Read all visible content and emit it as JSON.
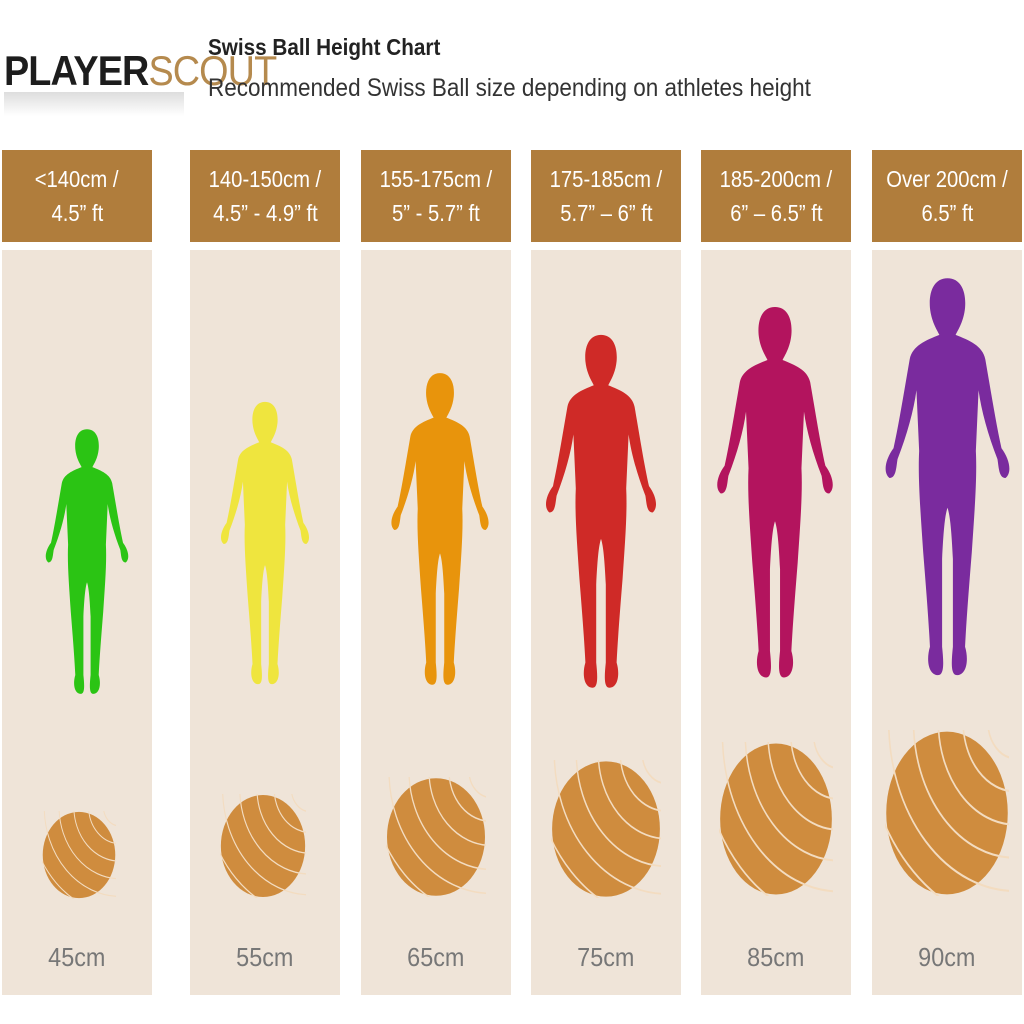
{
  "logo": {
    "part1": "PLAYER",
    "part2": "SCOUT"
  },
  "title": "Swiss Ball Height Chart",
  "subtitle": "Recommended Swiss Ball size depending on athletes height",
  "columns": [
    {
      "line1": "<140cm /",
      "line2": "4.5” ft",
      "ball": "45cm",
      "color": "#2bc414",
      "figure_icon": "person-silhouette-icon"
    },
    {
      "line1": "140-150cm /",
      "line2": "4.5” - 4.9” ft",
      "ball": "55cm",
      "color": "#efe53e",
      "figure_icon": "person-silhouette-icon"
    },
    {
      "line1": "155-175cm /",
      "line2": "5” - 5.7” ft",
      "ball": "65cm",
      "color": "#e8940c",
      "figure_icon": "person-silhouette-icon"
    },
    {
      "line1": "175-185cm /",
      "line2": "5.7” – 6” ft",
      "ball": "75cm",
      "color": "#cf2a27",
      "figure_icon": "person-silhouette-icon"
    },
    {
      "line1": "185-200cm /",
      "line2": "6” – 6.5” ft",
      "ball": "85cm",
      "color": "#b3145e",
      "figure_icon": "person-silhouette-icon"
    },
    {
      "line1": "Over 200cm /",
      "line2": "6.5” ft",
      "ball": "90cm",
      "color": "#7a2b9e",
      "figure_icon": "person-silhouette-icon"
    }
  ],
  "colors": {
    "header": "#b07d3c",
    "panel": "#efe4d8",
    "ball": "#cf8c3e",
    "ball_lines": "#f3dcc0"
  }
}
